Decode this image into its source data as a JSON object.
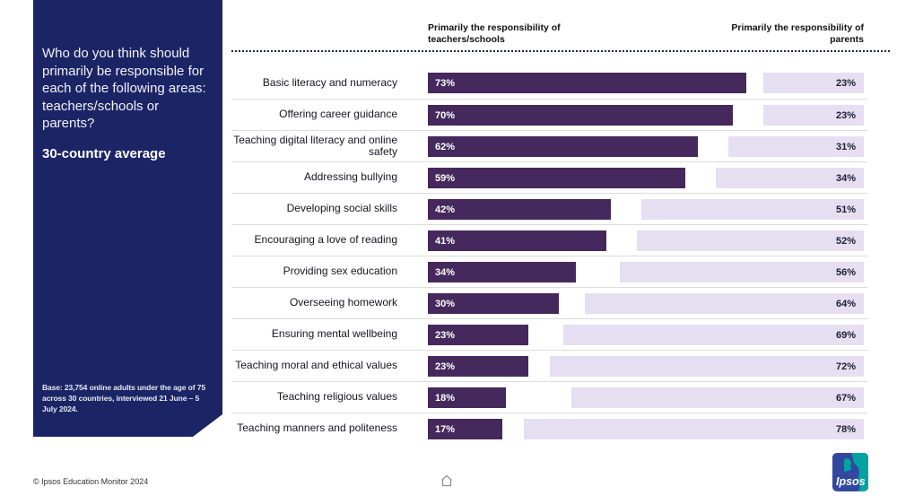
{
  "sidebar": {
    "question": "Who do you think should primarily be responsible for each of the following areas: teachers/schools or parents?",
    "subtitle": "30-country average",
    "base_note": "Base: 23,754 online adults under the age of 75 across 30 countries, interviewed 21 June – 5 July 2024."
  },
  "headers": {
    "left": "Primarily the responsibility of teachers/schools",
    "right": "Primarily the responsibility of parents"
  },
  "footer": {
    "copyright": "© Ipsos Education Monitor 2024"
  },
  "logo": {
    "text": "Ipsos"
  },
  "colors": {
    "sidebar_navy": "#1b2566",
    "teachers_bar": "#45295d",
    "parents_bar": "#e6dff2",
    "label_ink": "#15151f",
    "logo_blue": "#3347a0",
    "logo_teal": "#00a3a1"
  },
  "chart_data": {
    "type": "bar",
    "orientation": "horizontal-diverging",
    "title": "Who do you think should primarily be responsible for each of the following areas: teachers/schools or parents? (30-country average)",
    "categories": [
      "Basic literacy and numeracy",
      "Offering career guidance",
      "Teaching digital literacy and online safety",
      "Addressing bullying",
      "Developing social skills",
      "Encouraging a love of reading",
      "Providing sex education",
      "Overseeing homework",
      "Ensuring mental wellbeing",
      "Teaching moral and ethical values",
      "Teaching religious values",
      "Teaching manners and politeness"
    ],
    "series": [
      {
        "name": "Primarily the responsibility of teachers/schools",
        "values": [
          73,
          70,
          62,
          59,
          42,
          41,
          34,
          30,
          23,
          23,
          18,
          17
        ]
      },
      {
        "name": "Primarily the responsibility of parents",
        "values": [
          23,
          23,
          31,
          34,
          51,
          52,
          56,
          64,
          69,
          72,
          67,
          78
        ]
      }
    ],
    "value_format": "percent",
    "xlim": [
      0,
      100
    ],
    "grid": false,
    "legend_position": "top"
  }
}
